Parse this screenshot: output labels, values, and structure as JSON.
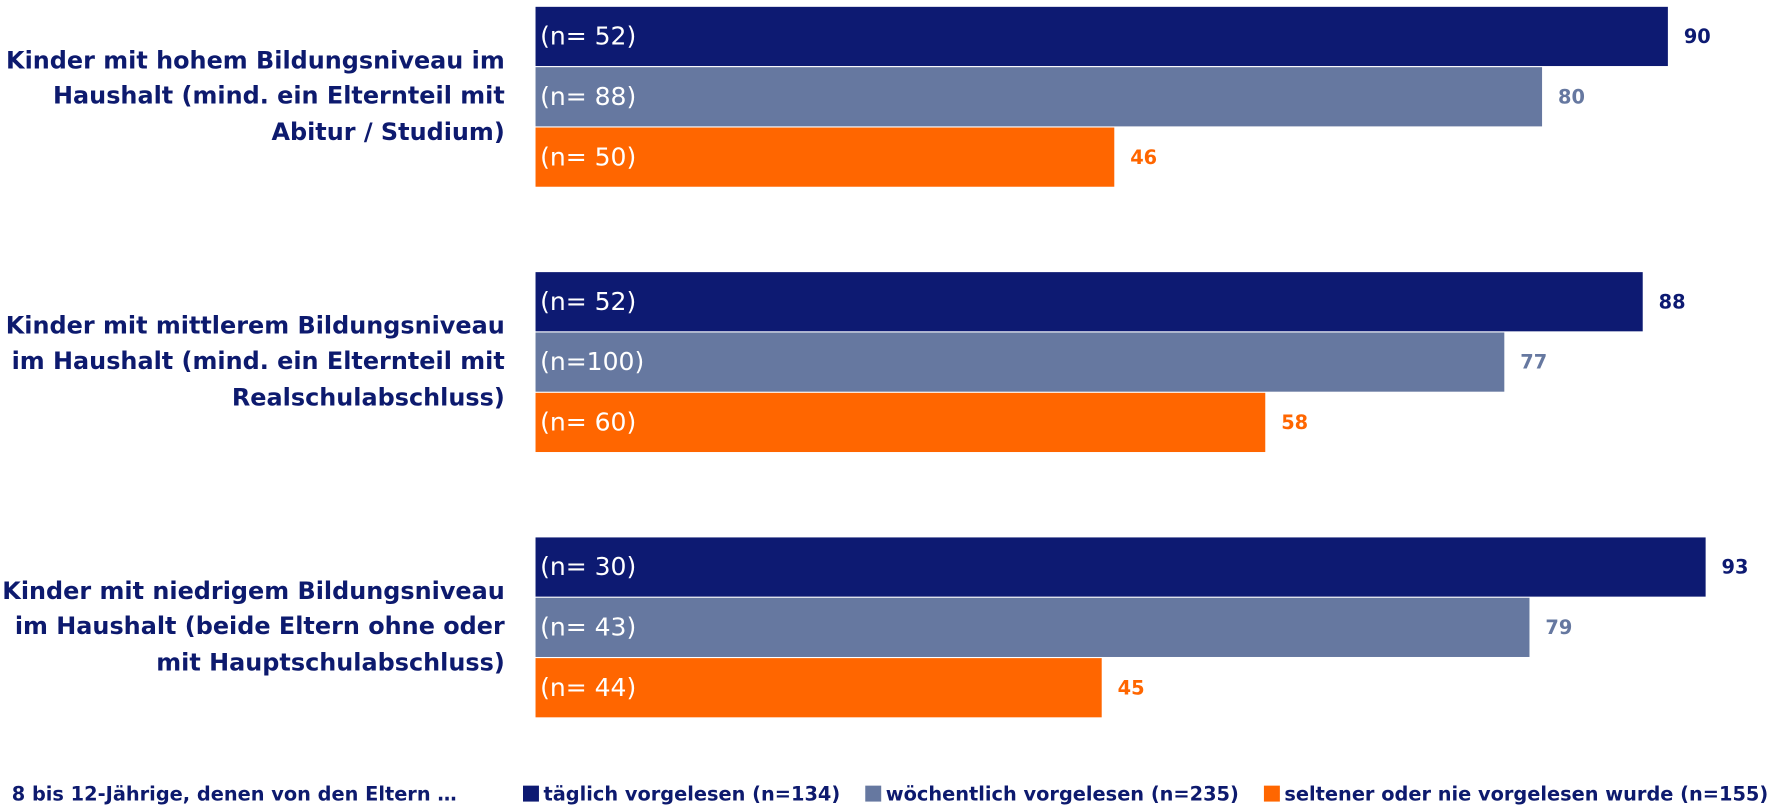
{
  "chart_data": {
    "type": "bar",
    "orientation": "horizontal",
    "categories": [
      "Kinder mit hohem Bildungsniveau im Haushalt (mind. ein Elternteil mit Abitur / Studium)",
      "Kinder mit mittlerem Bildungsniveau im Haushalt (mind. ein Elternteil mit Realschulabschluss)",
      "Kinder mit niedrigem Bildungsniveau im Haushalt (beide Eltern ohne oder mit Hauptschulabschluss)"
    ],
    "legend_title": "8 bis 12-Jährige, denen von den Eltern …",
    "series": [
      {
        "name": "täglich vorgelesen (n=134)",
        "color": "#0d1a72",
        "values": [
          90,
          88,
          93
        ],
        "sample_sizes": [
          "(n= 52)",
          "(n= 52)",
          "(n= 30)"
        ]
      },
      {
        "name": "wöchentlich vorgelesen (n=235)",
        "color": "#6678a0",
        "values": [
          80,
          77,
          79
        ],
        "sample_sizes": [
          "(n= 88)",
          "(n=100)",
          "(n= 43)"
        ]
      },
      {
        "name": "seltener oder nie vorgelesen wurde (n=155)",
        "color": "#ff6600",
        "values": [
          46,
          58,
          45
        ],
        "sample_sizes": [
          "(n= 50)",
          "(n= 60)",
          "(n= 44)"
        ]
      }
    ],
    "legend": "bottom"
  }
}
